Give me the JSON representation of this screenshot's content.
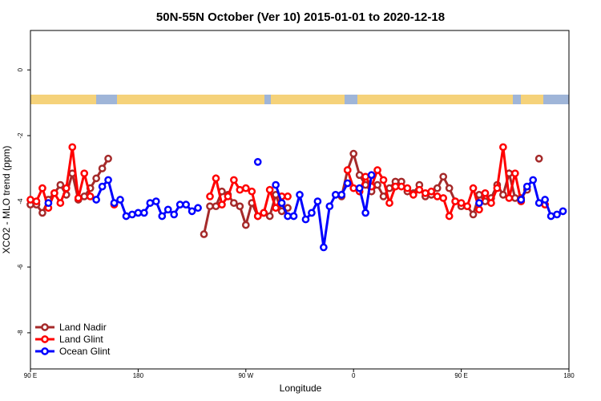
{
  "chart_data": {
    "type": "line",
    "title": "50N-55N October (Ver 10)   2015-01-01 to 2020-12-18",
    "x_label": "Longitude",
    "y_label": "XCO2 - MLO trend (ppm)",
    "x": [
      90,
      95,
      100,
      105,
      110,
      115,
      120,
      125,
      130,
      135,
      140,
      145,
      150,
      155,
      160,
      165,
      170,
      175,
      180,
      185,
      190,
      195,
      200,
      205,
      210,
      215,
      220,
      225,
      230,
      235,
      240,
      245,
      250,
      255,
      260,
      265,
      270,
      275,
      280,
      285,
      290,
      295,
      300,
      305,
      310,
      315,
      320,
      325,
      330,
      335,
      340,
      345,
      350,
      355,
      360,
      365,
      370,
      375,
      380,
      385,
      390,
      395,
      400,
      405,
      410,
      415,
      420,
      425,
      430,
      435,
      440,
      445,
      450,
      455,
      460,
      465,
      470,
      475,
      480,
      485,
      490,
      495,
      500,
      505,
      510,
      515,
      520,
      525,
      530,
      535,
      540
    ],
    "xlim": [
      90,
      540
    ],
    "xticks": [
      {
        "value": 90,
        "label": "90 E"
      },
      {
        "value": 180,
        "label": "180"
      },
      {
        "value": 270,
        "label": "90 W"
      },
      {
        "value": 360,
        "label": "0"
      },
      {
        "value": 450,
        "label": "90 E"
      },
      {
        "value": 540,
        "label": "180"
      }
    ],
    "ylim": [
      -9.1,
      1.2
    ],
    "yticks": [
      0,
      -2,
      -4,
      -6,
      -8
    ],
    "legend": "bottom-left",
    "series": [
      {
        "name": "Land Nadir",
        "color": "#a52a2a",
        "values": [
          -4.1,
          -4.1,
          -4.35,
          -3.95,
          -3.75,
          -3.5,
          -3.8,
          -3.15,
          -3.95,
          -3.85,
          -3.6,
          -3.3,
          -3.0,
          -2.7,
          null,
          null,
          null,
          null,
          null,
          null,
          null,
          null,
          null,
          null,
          null,
          null,
          null,
          null,
          null,
          -5.0,
          -4.15,
          -4.15,
          -3.7,
          -3.8,
          -4.05,
          -4.15,
          -4.72,
          -4.05,
          -4.45,
          -4.35,
          -4.45,
          -3.8,
          -4.3,
          -4.2,
          null,
          null,
          null,
          null,
          null,
          null,
          null,
          null,
          -3.85,
          -3.05,
          -2.55,
          -3.2,
          -3.5,
          -3.7,
          -3.5,
          -3.85,
          -3.6,
          -3.4,
          -3.4,
          -3.7,
          -3.75,
          -3.5,
          -3.85,
          -3.8,
          -3.6,
          -3.25,
          -3.6,
          -4.0,
          -4.15,
          -4.15,
          -4.4,
          -3.8,
          -4.0,
          -3.9,
          -3.5,
          -3.8,
          -3.15,
          -3.9,
          -3.9,
          -3.65,
          null,
          -2.7,
          null,
          null,
          null,
          null,
          null
        ]
      },
      {
        "name": "Land Glint",
        "color": "#ff0000",
        "values": [
          -3.95,
          -4.0,
          -3.6,
          -4.2,
          -3.75,
          -4.05,
          -3.6,
          -2.35,
          -3.9,
          -3.15,
          -3.85,
          null,
          null,
          null,
          -4.1,
          null,
          null,
          null,
          null,
          null,
          null,
          null,
          null,
          null,
          null,
          null,
          null,
          null,
          null,
          null,
          -3.85,
          -3.3,
          -4.1,
          -3.85,
          -3.35,
          -3.65,
          -3.6,
          -3.7,
          -4.45,
          -4.35,
          -3.65,
          -4.2,
          -3.85,
          -3.85,
          null,
          null,
          null,
          null,
          null,
          null,
          null,
          null,
          null,
          -3.05,
          -3.6,
          -3.7,
          -3.25,
          -3.55,
          -3.05,
          -3.35,
          -4.05,
          -3.55,
          -3.55,
          -3.6,
          -3.8,
          -3.65,
          -3.75,
          -3.7,
          -3.85,
          -3.9,
          -4.45,
          -4.0,
          -4.05,
          -4.15,
          -3.6,
          -4.25,
          -3.75,
          -4.05,
          -3.6,
          -2.35,
          -3.9,
          -3.15,
          -4.0,
          null,
          null,
          null,
          -4.1,
          null,
          null,
          null,
          null
        ]
      },
      {
        "name": "Ocean Glint",
        "color": "#0000ff",
        "values": [
          null,
          null,
          null,
          -4.05,
          null,
          null,
          null,
          null,
          null,
          null,
          null,
          -3.95,
          -3.55,
          -3.35,
          -4.05,
          -3.95,
          -4.45,
          -4.4,
          -4.35,
          -4.35,
          -4.05,
          -4.0,
          -4.45,
          -4.25,
          -4.4,
          -4.1,
          -4.1,
          -4.3,
          -4.2,
          null,
          null,
          null,
          null,
          null,
          null,
          null,
          null,
          null,
          -2.8,
          null,
          null,
          -3.5,
          -4.05,
          -4.45,
          -4.45,
          -3.8,
          -4.55,
          -4.35,
          -4.0,
          -5.4,
          -4.15,
          -3.8,
          -3.8,
          -3.45,
          null,
          -3.6,
          -4.35,
          -3.2,
          null,
          null,
          null,
          null,
          null,
          null,
          null,
          null,
          null,
          null,
          null,
          null,
          null,
          null,
          null,
          null,
          null,
          -4.05,
          null,
          null,
          null,
          null,
          null,
          null,
          -3.95,
          -3.55,
          -3.35,
          -4.05,
          -3.95,
          -4.45,
          -4.4,
          -4.3,
          null
        ]
      }
    ]
  }
}
